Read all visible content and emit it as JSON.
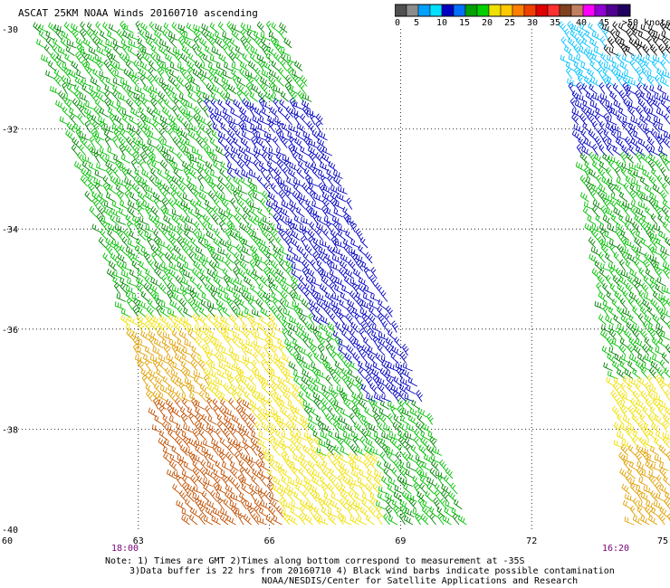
{
  "title": "ASCAT 25KM NOAA Winds 20160710 ascending",
  "colorbar": {
    "colors": [
      "#505050",
      "#8c8c8c",
      "#00a0ff",
      "#00e0ff",
      "#0000c0",
      "#0070ff",
      "#00a000",
      "#00d000",
      "#f0e000",
      "#ffc800",
      "#ff8000",
      "#f04000",
      "#e00000",
      "#ff3030",
      "#804020",
      "#c08060",
      "#ff00ff",
      "#9000d0",
      "#500090",
      "#200060"
    ],
    "labels": [
      "0",
      "5",
      "10",
      "15",
      "20",
      "25",
      "30",
      "35",
      "40",
      "45",
      ">50 knots"
    ]
  },
  "map": {
    "lon_range": [
      60,
      75
    ],
    "lat_range": [
      -40,
      -30
    ],
    "y_ticks": [
      "-30",
      "-32",
      "-34",
      "-36",
      "-38",
      "-40"
    ],
    "x_ticks": [
      "60",
      "63",
      "66",
      "69",
      "72",
      "75"
    ],
    "pass_times": [
      "18:00",
      "16:20"
    ],
    "grid_lons": [
      63,
      66,
      69,
      72
    ],
    "grid_lats": [
      -32,
      -34,
      -36,
      -38
    ]
  },
  "notes": [
    "Note: 1) Times are GMT 2)Times along bottom correspond to measurement at -35S",
    "3)Data buffer is 22 hrs from 20160710 4) Black wind barbs indicate possible contamination",
    "NOAA/NESDIS/Center for Satellite Applications and Research"
  ],
  "wind_colors": {
    "blue": "#0000c0",
    "green_dark": "#008000",
    "green": "#00c000",
    "yellow": "#f0e000",
    "orange": "#e0a000",
    "brown": "#c05000",
    "cyan": "#00c0ff",
    "black": "#000000"
  }
}
